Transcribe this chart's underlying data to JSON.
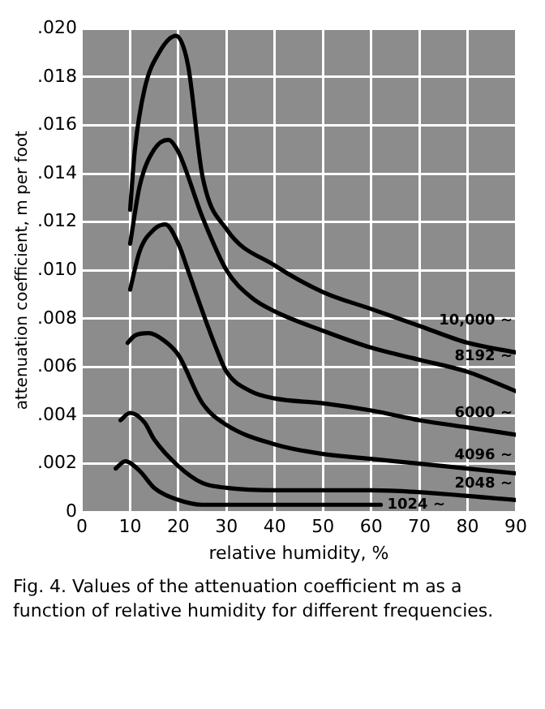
{
  "chart_data": {
    "type": "line",
    "xlabel": "relative humidity, %",
    "ylabel": "attenuation coefficient, m per foot",
    "annotations": [
      "Fig. 4.  Values of the attenuation coefficient m as a function of relative humidity for different frequencies."
    ],
    "xlim": [
      0,
      90
    ],
    "xticks": [
      0,
      10,
      20,
      30,
      40,
      50,
      60,
      70,
      80,
      90
    ],
    "ylim": [
      0,
      0.02
    ],
    "yticks": [
      0,
      {
        "value": 0.002,
        "label": ".002"
      },
      {
        "value": 0.004,
        "label": ".004"
      },
      {
        "value": 0.006,
        "label": ".006"
      },
      {
        "value": 0.008,
        "label": ".008"
      },
      {
        "value": 0.01,
        "label": ".010"
      },
      {
        "value": 0.012,
        "label": ".012"
      },
      {
        "value": 0.014,
        "label": ".014"
      },
      {
        "value": 0.016,
        "label": ".016"
      },
      {
        "value": 0.018,
        "label": ".018"
      },
      {
        "value": 0.02,
        "label": ".020"
      }
    ],
    "grid": true,
    "legend": false,
    "marker": "none",
    "line_style": "solid",
    "series": [
      {
        "name": "10,000 ~",
        "color": "#000000",
        "x": [
          10,
          11,
          13,
          16,
          19.5,
          22,
          25,
          30,
          40,
          50,
          60,
          70,
          80,
          90
        ],
        "values": [
          0.0125,
          0.015,
          0.0175,
          0.019,
          0.0197,
          0.0185,
          0.0139,
          0.0117,
          0.0102,
          0.0091,
          0.0084,
          0.0077,
          0.007,
          0.0066
        ]
      },
      {
        "name": "8192 ~",
        "color": "#000000",
        "x": [
          10,
          12,
          15,
          17.9,
          20,
          25,
          30,
          35,
          40,
          50,
          60,
          70,
          80,
          90
        ],
        "values": [
          0.0111,
          0.0135,
          0.015,
          0.0154,
          0.0149,
          0.0122,
          0.01,
          0.0089,
          0.0083,
          0.0075,
          0.0068,
          0.0063,
          0.0058,
          0.005
        ]
      },
      {
        "name": "6000 ~",
        "color": "#000000",
        "x": [
          10,
          12,
          15,
          17.3,
          20,
          22,
          25,
          28,
          30,
          35,
          40,
          50,
          60,
          70,
          80,
          90
        ],
        "values": [
          0.0092,
          0.0108,
          0.0117,
          0.0119,
          0.0111,
          0.01,
          0.0083,
          0.0067,
          0.0058,
          0.005,
          0.0047,
          0.0045,
          0.0042,
          0.0038,
          0.0035,
          0.0032
        ]
      },
      {
        "name": "4096 ~",
        "color": "#000000",
        "x": [
          9.5,
          11,
          13.8,
          17,
          20,
          25,
          30,
          40,
          50,
          60,
          70,
          80,
          90
        ],
        "values": [
          0.007,
          0.0073,
          0.0074,
          0.0071,
          0.0065,
          0.0045,
          0.0036,
          0.0028,
          0.0024,
          0.0022,
          0.002,
          0.0018,
          0.0016
        ]
      },
      {
        "name": "2048 ~",
        "color": "#000000",
        "x": [
          8,
          10,
          13,
          15,
          20,
          25,
          30,
          40,
          60,
          90
        ],
        "values": [
          0.0038,
          0.0041,
          0.0037,
          0.003,
          0.0019,
          0.0012,
          0.001,
          0.0009,
          0.0009,
          0.0005
        ]
      },
      {
        "name": "1024 ~",
        "color": "#000000",
        "x": [
          7,
          9,
          12,
          15,
          20,
          25,
          30,
          45,
          62
        ],
        "values": [
          0.0018,
          0.0021,
          0.0017,
          0.001,
          0.0005,
          0.0003,
          0.0003,
          0.0003,
          0.0003
        ]
      }
    ]
  }
}
